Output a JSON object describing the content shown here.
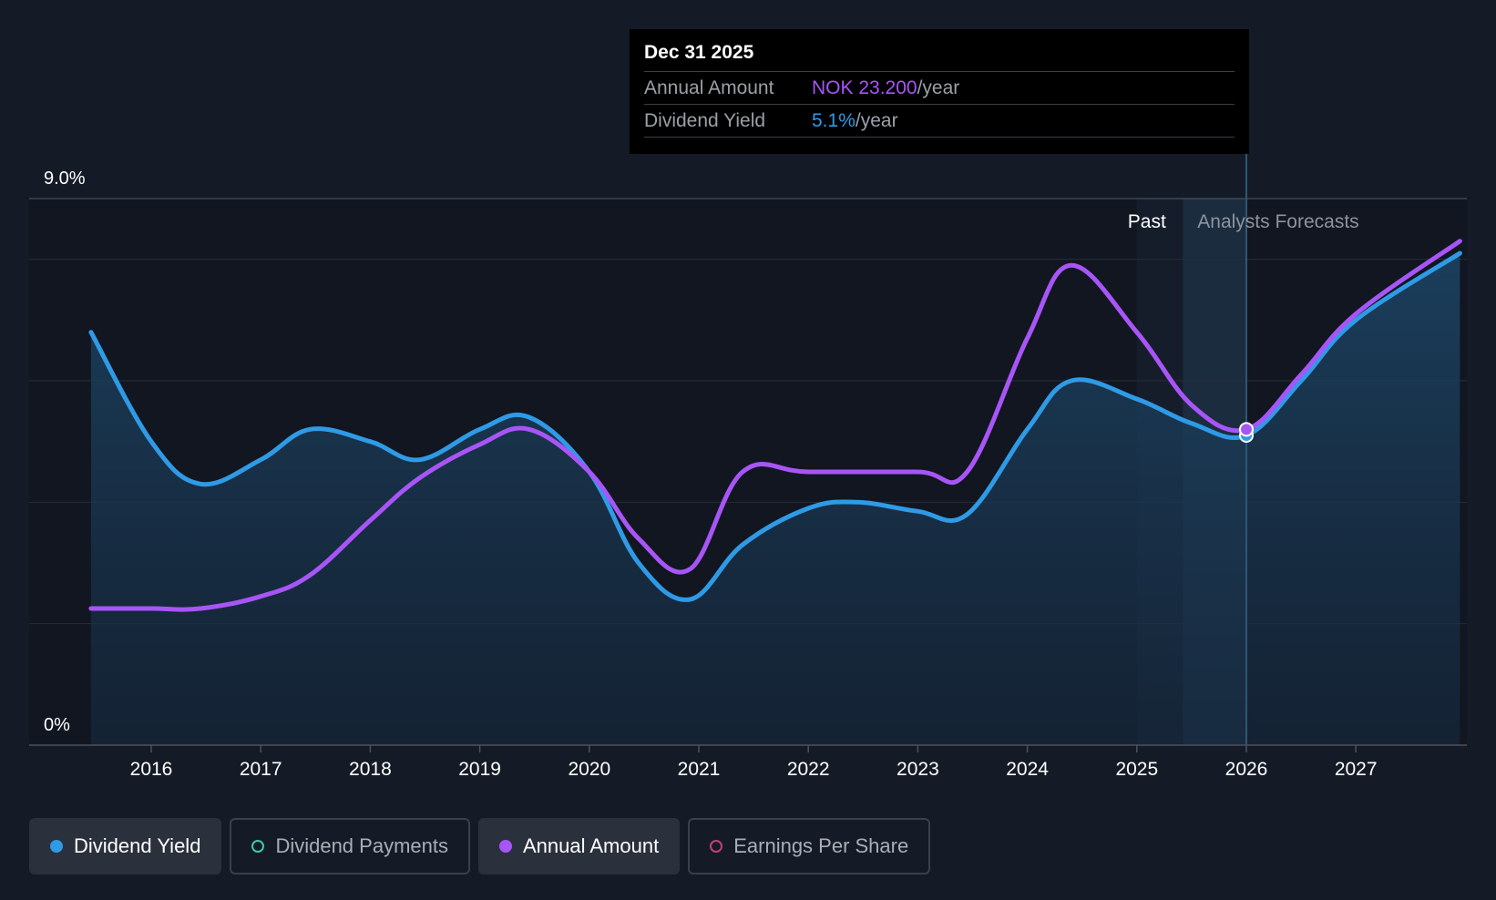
{
  "chart_data": {
    "type": "line",
    "title": "",
    "xlabel": "",
    "ylabel": "",
    "x_ticks": [
      "2016",
      "2017",
      "2018",
      "2019",
      "2020",
      "2021",
      "2022",
      "2023",
      "2024",
      "2025",
      "2026",
      "2027"
    ],
    "y_axis": {
      "top_label": "9.0%",
      "bottom_label": "0%",
      "ylim": [
        0,
        9.0
      ]
    },
    "regions": {
      "past_label": "Past",
      "forecast_label": "Analysts Forecasts",
      "past_end": 2025.0,
      "forecast_start": 2025.42,
      "highlight_end": 2026.0
    },
    "series": [
      {
        "name": "Dividend Yield",
        "color": "#2f9ae6",
        "filled": true,
        "points": [
          [
            2015.45,
            6.8
          ],
          [
            2016.0,
            5.0
          ],
          [
            2016.45,
            4.3
          ],
          [
            2017.0,
            4.7
          ],
          [
            2017.45,
            5.2
          ],
          [
            2018.0,
            5.0
          ],
          [
            2018.45,
            4.7
          ],
          [
            2019.0,
            5.2
          ],
          [
            2019.45,
            5.4
          ],
          [
            2020.0,
            4.5
          ],
          [
            2020.45,
            3.0
          ],
          [
            2020.92,
            2.4
          ],
          [
            2021.4,
            3.3
          ],
          [
            2022.0,
            3.9
          ],
          [
            2022.45,
            4.0
          ],
          [
            2023.0,
            3.85
          ],
          [
            2023.45,
            3.8
          ],
          [
            2024.0,
            5.2
          ],
          [
            2024.4,
            6.0
          ],
          [
            2025.0,
            5.7
          ],
          [
            2025.5,
            5.3
          ],
          [
            2026.0,
            5.1
          ],
          [
            2026.5,
            6.0
          ],
          [
            2027.0,
            7.0
          ],
          [
            2027.95,
            8.1
          ]
        ]
      },
      {
        "name": "Annual Amount",
        "color": "#a855f7",
        "filled": false,
        "points": [
          [
            2015.45,
            2.25
          ],
          [
            2016.0,
            2.25
          ],
          [
            2016.45,
            2.25
          ],
          [
            2017.0,
            2.45
          ],
          [
            2017.45,
            2.8
          ],
          [
            2018.0,
            3.7
          ],
          [
            2018.45,
            4.4
          ],
          [
            2019.0,
            4.95
          ],
          [
            2019.45,
            5.2
          ],
          [
            2020.0,
            4.5
          ],
          [
            2020.45,
            3.4
          ],
          [
            2020.92,
            2.9
          ],
          [
            2021.4,
            4.5
          ],
          [
            2022.0,
            4.5
          ],
          [
            2023.0,
            4.5
          ],
          [
            2023.45,
            4.5
          ],
          [
            2024.0,
            6.7
          ],
          [
            2024.4,
            7.9
          ],
          [
            2025.0,
            6.8
          ],
          [
            2025.5,
            5.6
          ],
          [
            2026.0,
            5.2
          ],
          [
            2026.5,
            6.1
          ],
          [
            2027.0,
            7.1
          ],
          [
            2027.95,
            8.3
          ]
        ]
      }
    ],
    "marker": {
      "x": 2026.0,
      "yield": 5.1,
      "amount": 5.2
    }
  },
  "tooltip": {
    "date": "Dec 31 2025",
    "annual_amount_label": "Annual Amount",
    "annual_amount_value": "NOK 23.200",
    "annual_amount_unit": "/year",
    "dividend_yield_label": "Dividend Yield",
    "dividend_yield_value": "5.1%",
    "dividend_yield_unit": "/year"
  },
  "legend": {
    "dividend_yield": "Dividend Yield",
    "dividend_payments": "Dividend Payments",
    "annual_amount": "Annual Amount",
    "earnings_per_share": "Earnings Per Share"
  },
  "colors": {
    "background": "#151b26",
    "yield": "#2f9ae6",
    "amount": "#a855f7",
    "payments": "#45c4b0",
    "eps": "#c2407a"
  }
}
